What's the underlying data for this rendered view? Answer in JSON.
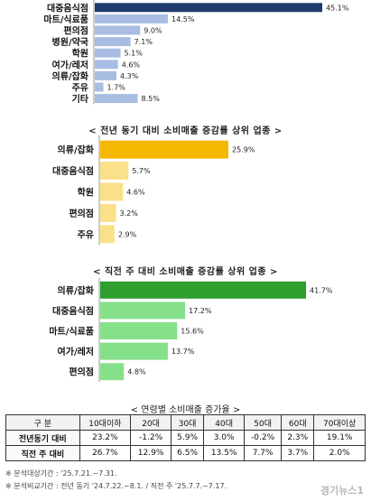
{
  "chart_data": [
    {
      "type": "bar",
      "orientation": "horizontal",
      "color": "#1f3a6b",
      "highlight_color": "#1f3a6b",
      "bar_color": "#a9bde3",
      "categories": [
        "대중음식점",
        "마트/식료품",
        "편의점",
        "병원/약국",
        "학원",
        "여가/레저",
        "의류/잡화",
        "주유",
        "기타"
      ],
      "values": [
        45.1,
        14.5,
        9.0,
        7.1,
        5.1,
        4.6,
        4.3,
        1.7,
        8.5
      ],
      "value_labels": [
        "45.1%",
        "14.5%",
        "9.0%",
        "7.1%",
        "5.1%",
        "4.6%",
        "4.3%",
        "1.7%",
        "8.5%"
      ]
    },
    {
      "type": "bar",
      "orientation": "horizontal",
      "title": "< 전년 동기 대비 소비매출 증감률 상위 업종 >",
      "highlight_color": "#f5b800",
      "bar_color": "#fbe08a",
      "categories": [
        "의류/잡화",
        "대중음식점",
        "학원",
        "편의점",
        "주유"
      ],
      "values": [
        25.9,
        5.7,
        4.6,
        3.2,
        2.9
      ],
      "value_labels": [
        "25.9%",
        "5.7%",
        "4.6%",
        "3.2%",
        "2.9%"
      ]
    },
    {
      "type": "bar",
      "orientation": "horizontal",
      "title": "< 직전 주 대비 소비매출 증감률 상위 업종 >",
      "highlight_color": "#2e9e2e",
      "bar_color": "#86e08a",
      "categories": [
        "의류/잡화",
        "대중음식점",
        "마트/식료품",
        "여가/레저",
        "편의점"
      ],
      "values": [
        41.7,
        17.2,
        15.6,
        13.7,
        4.8
      ],
      "value_labels": [
        "41.7%",
        "17.2%",
        "15.6%",
        "13.7%",
        "4.8%"
      ]
    },
    {
      "type": "table",
      "title": "< 연령별 소비매출 증가율 >",
      "columns": [
        "구 분",
        "10대이하",
        "20대",
        "30대",
        "40대",
        "50대",
        "60대",
        "70대이상"
      ],
      "rows": [
        {
          "label": "전년동기 대비",
          "values": [
            "23.2%",
            "-1.2%",
            "5.9%",
            "3.0%",
            "-0.2%",
            "2.3%",
            "19.1%"
          ]
        },
        {
          "label": "직전 주 대비",
          "values": [
            "26.7%",
            "12.9%",
            "6.5%",
            "13.5%",
            "7.7%",
            "3.7%",
            "2.0%"
          ]
        }
      ]
    }
  ],
  "notes": [
    "※ 분석대상기간 : '25.7.21.~7.31.",
    "※ 분석비교기간 : 전년 동기 '24.7.22.~8.1. / 직전 주 '25.7.7.~7.17."
  ],
  "watermark": "경기뉴스1"
}
